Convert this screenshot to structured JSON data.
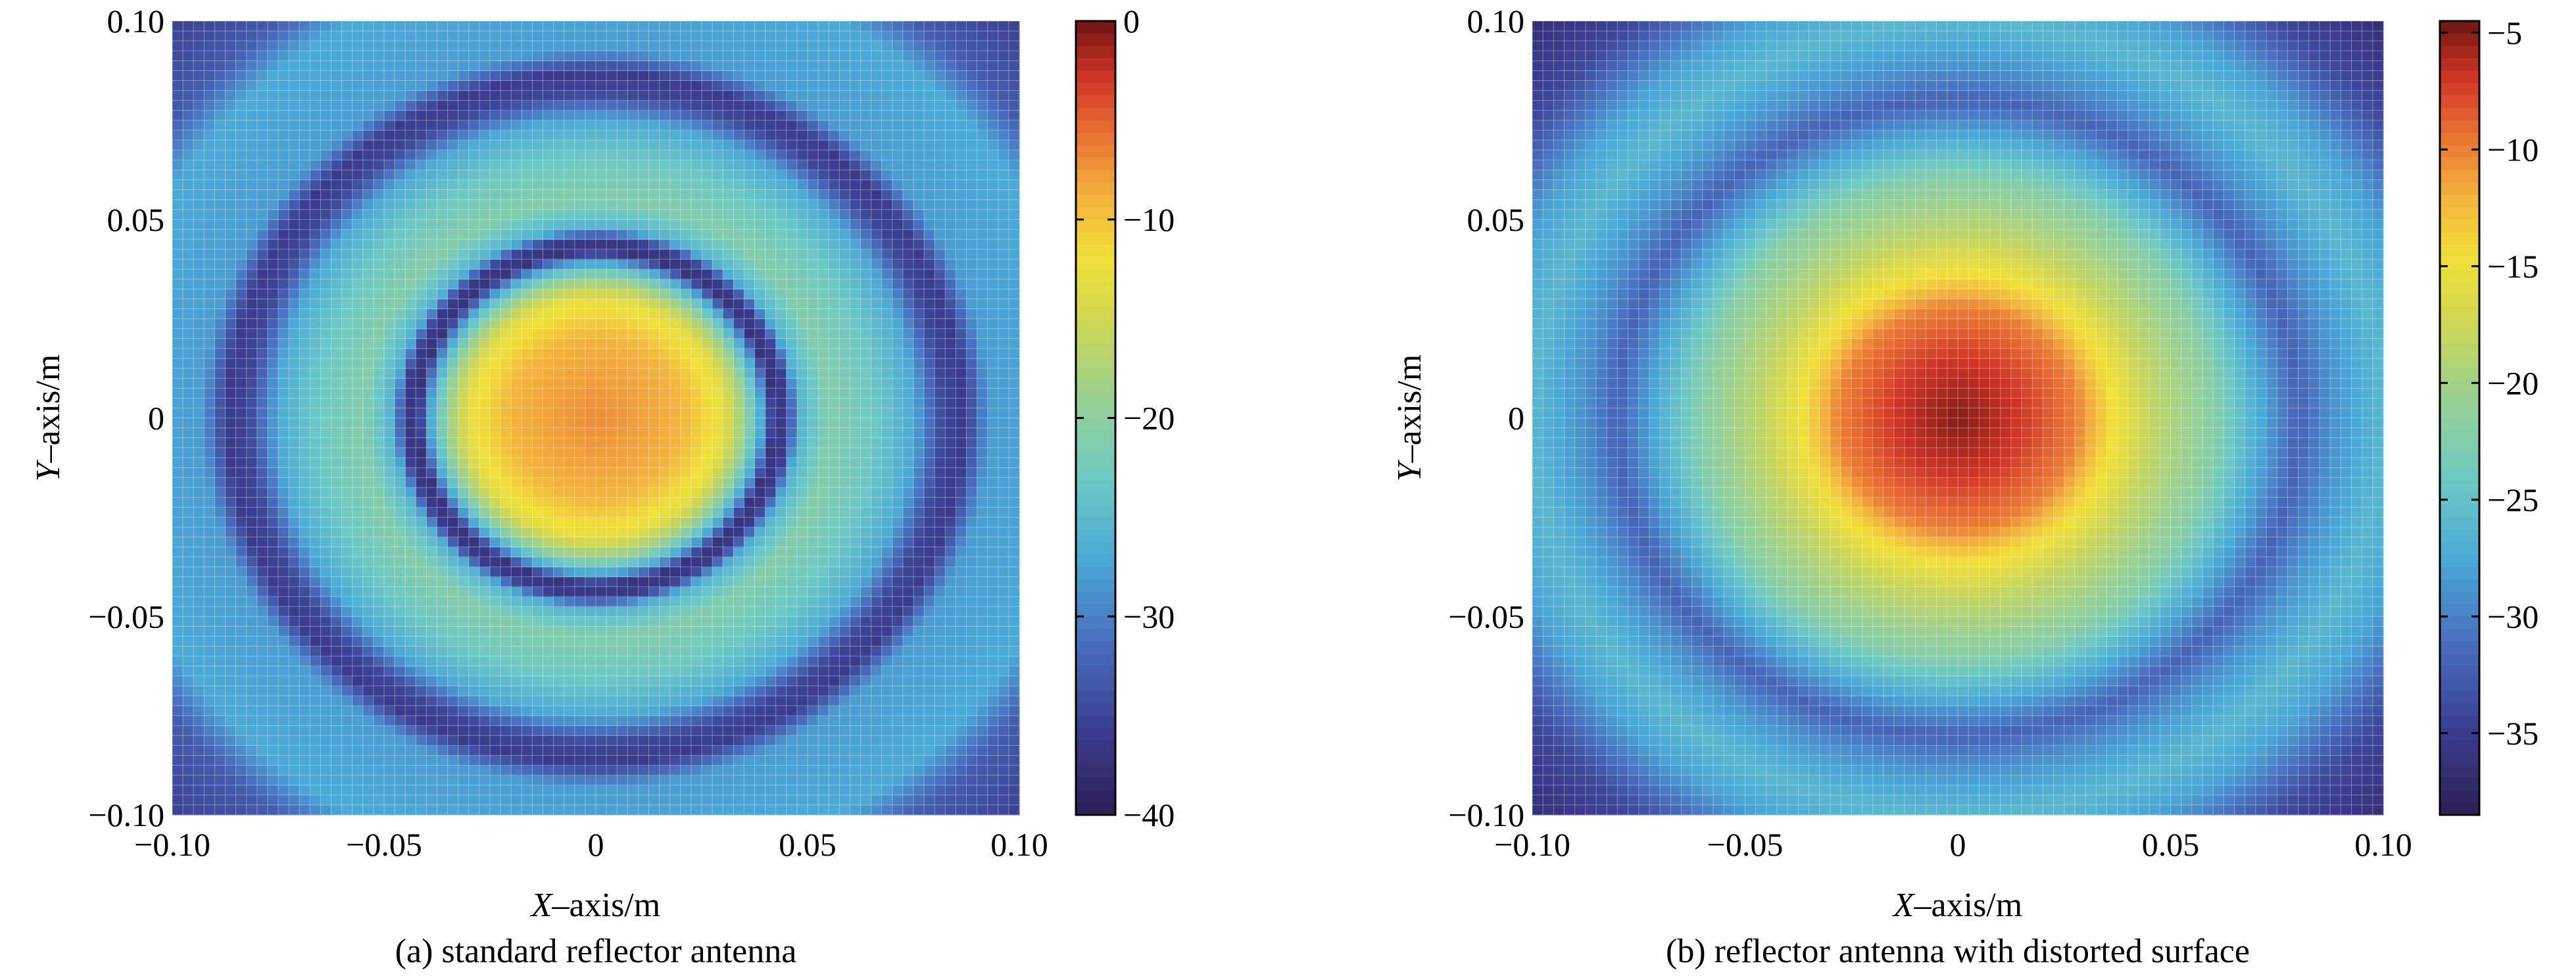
{
  "chart_data": [
    {
      "type": "heatmap",
      "caption": "(a) standard reflector antenna",
      "xlabel_italic": "X",
      "xlabel_rest": "–axis/m",
      "ylabel_italic": "Y",
      "ylabel_rest": "–axis/m",
      "xlim": [
        -0.1,
        0.1
      ],
      "ylim": [
        -0.1,
        0.1
      ],
      "xticks": [
        {
          "value": -0.1,
          "label": "−0.10"
        },
        {
          "value": -0.05,
          "label": "−0.05"
        },
        {
          "value": 0.0,
          "label": "0"
        },
        {
          "value": 0.05,
          "label": "0.05"
        },
        {
          "value": 0.1,
          "label": "0.10"
        }
      ],
      "yticks": [
        {
          "value": 0.1,
          "label": "0.10"
        },
        {
          "value": 0.05,
          "label": "0.05"
        },
        {
          "value": 0.0,
          "label": "0"
        },
        {
          "value": -0.05,
          "label": "−0.05"
        },
        {
          "value": -0.1,
          "label": "−0.10"
        }
      ],
      "colorbar": {
        "range": [
          -40,
          0
        ],
        "ticks": [
          {
            "value": 0,
            "label": "0"
          },
          {
            "value": -10,
            "label": "−10"
          },
          {
            "value": -20,
            "label": "−20"
          },
          {
            "value": -30,
            "label": "−30"
          },
          {
            "value": -40,
            "label": "−40"
          }
        ]
      },
      "colormap": "jet",
      "grid_cells": 80,
      "radial_profile": [
        {
          "r": 0.0,
          "v": -7
        },
        {
          "r": 0.02,
          "v": -9
        },
        {
          "r": 0.03,
          "v": -13
        },
        {
          "r": 0.035,
          "v": -19
        },
        {
          "r": 0.039,
          "v": -27
        },
        {
          "r": 0.042,
          "v": -37
        },
        {
          "r": 0.045,
          "v": -36
        },
        {
          "r": 0.048,
          "v": -26
        },
        {
          "r": 0.055,
          "v": -21
        },
        {
          "r": 0.065,
          "v": -23
        },
        {
          "r": 0.075,
          "v": -27
        },
        {
          "r": 0.082,
          "v": -35
        },
        {
          "r": 0.087,
          "v": -36
        },
        {
          "r": 0.093,
          "v": -28
        },
        {
          "r": 0.115,
          "v": -27
        },
        {
          "r": 0.125,
          "v": -33
        },
        {
          "r": 0.145,
          "v": -36
        }
      ]
    },
    {
      "type": "heatmap",
      "caption": "(b) reflector antenna with distorted surface",
      "xlabel_italic": "X",
      "xlabel_rest": "–axis/m",
      "ylabel_italic": "Y",
      "ylabel_rest": "–axis/m",
      "xlim": [
        -0.1,
        0.1
      ],
      "ylim": [
        -0.1,
        0.1
      ],
      "xticks": [
        {
          "value": -0.1,
          "label": "−0.10"
        },
        {
          "value": -0.05,
          "label": "−0.05"
        },
        {
          "value": 0.0,
          "label": "0"
        },
        {
          "value": 0.05,
          "label": "0.05"
        },
        {
          "value": 0.1,
          "label": "0.10"
        }
      ],
      "yticks": [
        {
          "value": 0.1,
          "label": "0.10"
        },
        {
          "value": 0.05,
          "label": "0.05"
        },
        {
          "value": 0.0,
          "label": "0"
        },
        {
          "value": -0.05,
          "label": "−0.05"
        },
        {
          "value": -0.1,
          "label": "−0.10"
        }
      ],
      "colorbar": {
        "range": [
          -38.5,
          -4.5
        ],
        "ticks": [
          {
            "value": -5,
            "label": "−5"
          },
          {
            "value": -10,
            "label": "−10"
          },
          {
            "value": -15,
            "label": "−15"
          },
          {
            "value": -20,
            "label": "−20"
          },
          {
            "value": -25,
            "label": "−25"
          },
          {
            "value": -30,
            "label": "−30"
          },
          {
            "value": -35,
            "label": "−35"
          }
        ]
      },
      "colormap": "jet",
      "grid_cells": 80,
      "radial_profile": [
        {
          "r": 0.0,
          "v": -5
        },
        {
          "r": 0.015,
          "v": -7
        },
        {
          "r": 0.028,
          "v": -10
        },
        {
          "r": 0.035,
          "v": -14
        },
        {
          "r": 0.045,
          "v": -18
        },
        {
          "r": 0.06,
          "v": -22
        },
        {
          "r": 0.072,
          "v": -28
        },
        {
          "r": 0.08,
          "v": -32
        },
        {
          "r": 0.088,
          "v": -29
        },
        {
          "r": 0.1,
          "v": -26
        },
        {
          "r": 0.11,
          "v": -28
        },
        {
          "r": 0.125,
          "v": -34
        },
        {
          "r": 0.145,
          "v": -37
        }
      ]
    }
  ]
}
